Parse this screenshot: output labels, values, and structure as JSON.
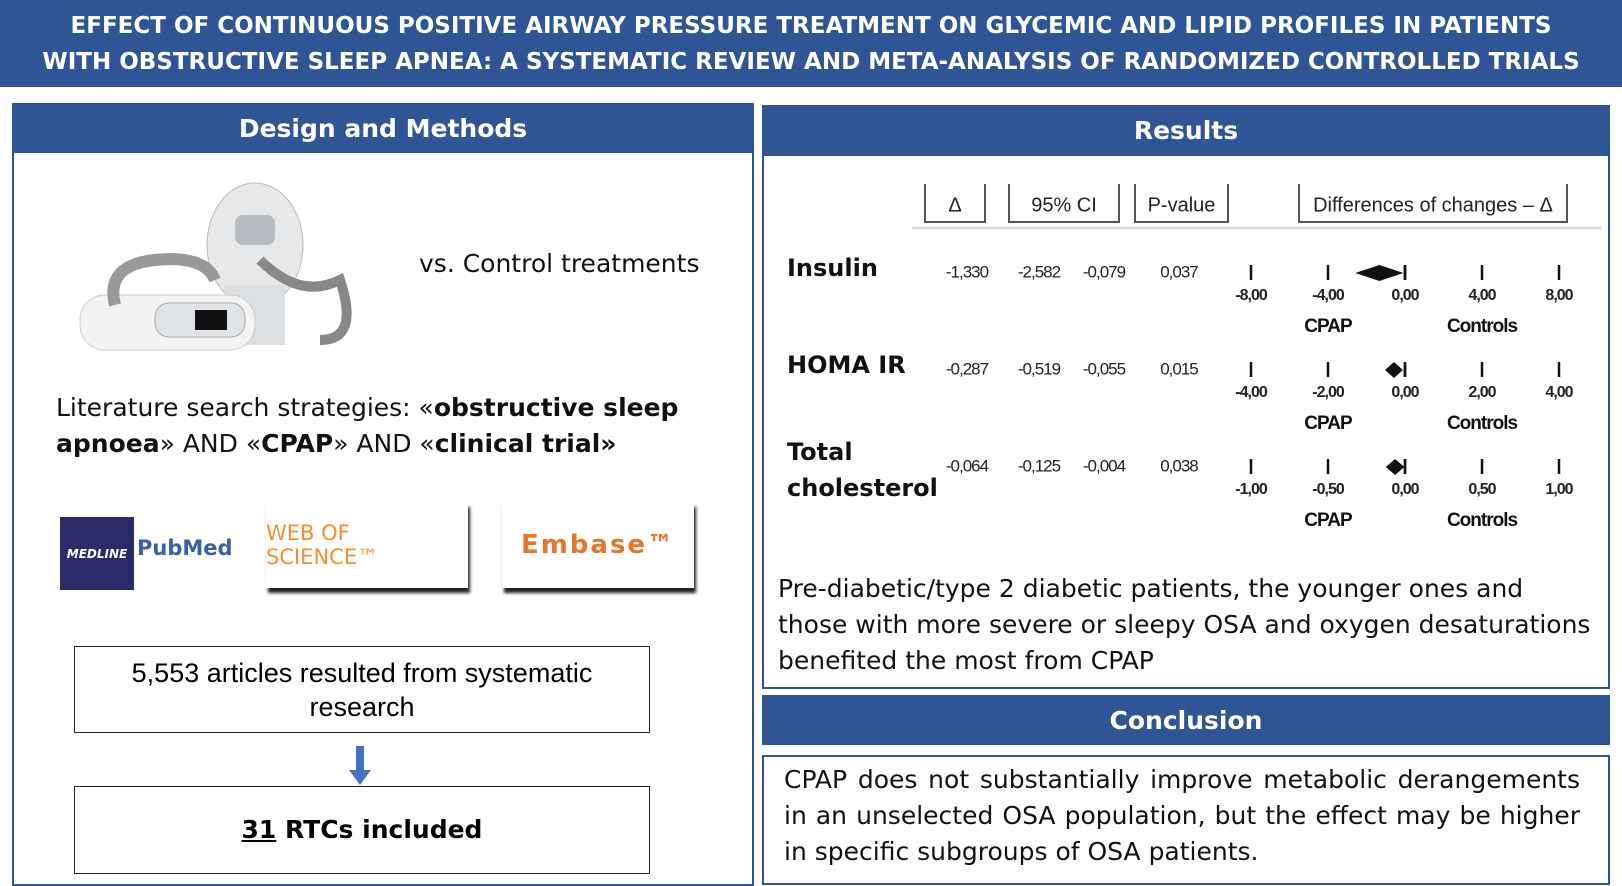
{
  "header": {
    "title": "EFFECT OF CONTINUOUS POSITIVE AIRWAY PRESSURE TREATMENT ON GLYCEMIC AND LIPID PROFILES IN PATIENTS WITH OBSTRUCTIVE SLEEP APNEA: A SYSTEMATIC REVIEW AND META-ANALYSIS OF RANDOMIZED CONTROLLED TRIALS"
  },
  "design": {
    "heading": "Design and Methods",
    "comparison": "vs. Control treatments",
    "search": [
      {
        "text": "Literature search strategies: «",
        "bold": false
      },
      {
        "text": "obstructive sleep apnoea",
        "bold": true
      },
      {
        "text": "» AND «",
        "bold": false
      },
      {
        "text": "CPAP",
        "bold": true
      },
      {
        "text": "» AND «",
        "bold": false
      },
      {
        "text": "clinical trial»",
        "bold": true
      }
    ],
    "databases": [
      "MEDLINE",
      "PubMed",
      "WEB OF SCIENCE™",
      "Embase™"
    ],
    "flow": {
      "search_result": "5,553 articles resulted from systematic research",
      "included_count": "31",
      "included_text": " RTCs included"
    }
  },
  "results": {
    "heading": "Results",
    "columns": [
      "Δ",
      "95% CI",
      "P-value",
      "Differences of changes – Δ"
    ],
    "favours": [
      "CPAP",
      "Controls"
    ],
    "rows": [
      {
        "label": "Insulin",
        "delta": {
          "value": -1.33,
          "label": "-1,330"
        },
        "ci": [
          {
            "value": -2.582,
            "label": "-2,582"
          },
          {
            "value": -0.079,
            "label": "-0,079"
          }
        ],
        "p_value": "0,037",
        "ticks": [
          {
            "value": -8,
            "label": "-8,00"
          },
          {
            "value": -4,
            "label": "-4,00"
          },
          {
            "value": 0,
            "label": "0,00"
          },
          {
            "value": 4,
            "label": "4,00"
          },
          {
            "value": 8,
            "label": "8,00"
          }
        ]
      },
      {
        "label": "HOMA IR",
        "delta": {
          "value": -0.287,
          "label": "-0,287"
        },
        "ci": [
          {
            "value": -0.519,
            "label": "-0,519"
          },
          {
            "value": -0.055,
            "label": "-0,055"
          }
        ],
        "p_value": "0,015",
        "ticks": [
          {
            "value": -4,
            "label": "-4,00"
          },
          {
            "value": -2,
            "label": "-2,00"
          },
          {
            "value": 0,
            "label": "0,00"
          },
          {
            "value": 2,
            "label": "2,00"
          },
          {
            "value": 4,
            "label": "4,00"
          }
        ]
      },
      {
        "label": "Total cholesterol",
        "delta": {
          "value": -0.064,
          "label": "-0,064"
        },
        "ci": [
          {
            "value": -0.125,
            "label": "-0,125"
          },
          {
            "value": -0.004,
            "label": "-0,004"
          }
        ],
        "p_value": "0,038",
        "ticks": [
          {
            "value": -1,
            "label": "-1,00"
          },
          {
            "value": -0.5,
            "label": "-0,50"
          },
          {
            "value": 0,
            "label": "0,00"
          },
          {
            "value": 0.5,
            "label": "0,50"
          },
          {
            "value": 1,
            "label": "1,00"
          }
        ]
      }
    ],
    "summary": "Pre-diabetic/type 2 diabetic patients, the younger ones and those with more severe or sleepy OSA and oxygen desaturations benefited the most from CPAP"
  },
  "conclusion": {
    "heading": "Conclusion",
    "text": "CPAP does not substantially improve metabolic derangements in an unselected OSA population, but the effect may be higher in specific subgroups of OSA patients."
  }
}
